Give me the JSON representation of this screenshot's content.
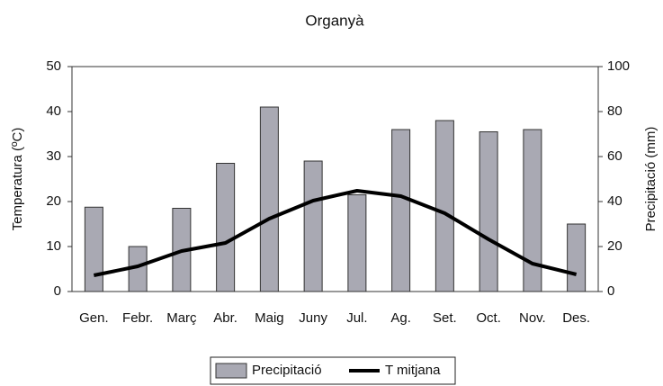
{
  "chart_data": {
    "type": "combo",
    "title": "Organyà",
    "y_label": "Temperatura (ºC)",
    "y2_label": "Precipitació (mm)",
    "categories": [
      "Gen.",
      "Febr.",
      "Març",
      "Abr.",
      "Maig",
      "Juny",
      "Jul.",
      "Ag.",
      "Set.",
      "Oct.",
      "Nov.",
      "Des."
    ],
    "series": [
      {
        "name": "Precipitació",
        "type": "bar",
        "axis": "y2",
        "color": "#a9a9b3",
        "values": [
          37.5,
          20,
          37,
          57,
          82,
          58,
          43,
          72,
          76,
          71,
          72,
          30
        ]
      },
      {
        "name": "T mitjana",
        "type": "line",
        "axis": "y",
        "color": "#000000",
        "values": [
          3.6,
          5.6,
          9,
          10.8,
          16.2,
          20.2,
          22.4,
          21.2,
          17.4,
          11.6,
          6.2,
          3.8
        ]
      }
    ],
    "ylim": [
      0,
      50
    ],
    "yticks": [
      0,
      10,
      20,
      30,
      40,
      50
    ],
    "y2lim": [
      0,
      100
    ],
    "y2ticks": [
      0,
      20,
      40,
      60,
      80,
      100
    ],
    "legend": "bottom"
  }
}
